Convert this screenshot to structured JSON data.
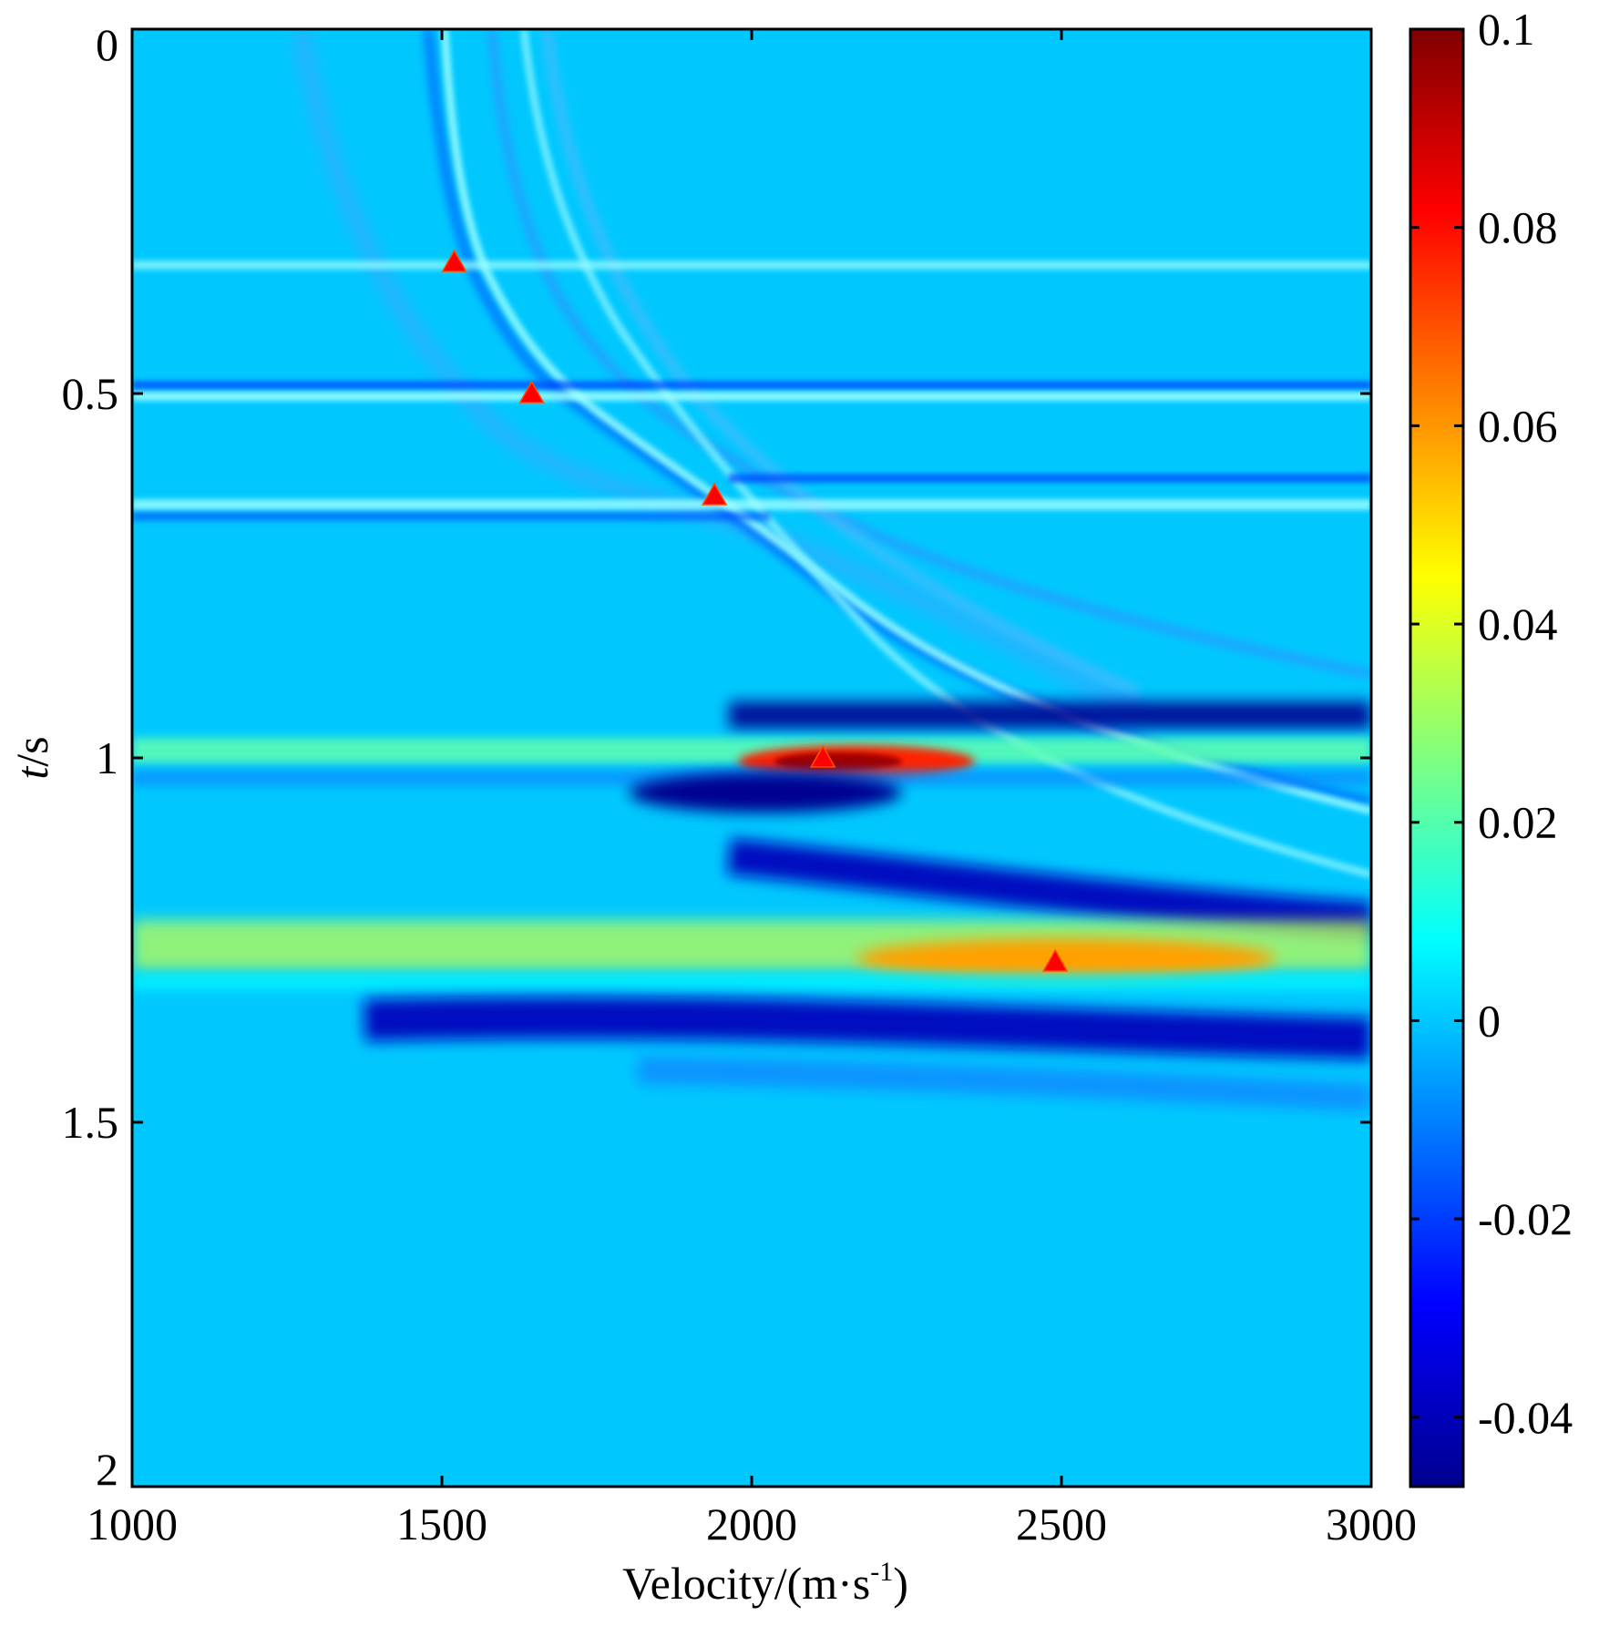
{
  "chart_data": {
    "type": "heatmap",
    "title": "",
    "xlabel": "Velocity/(m·s",
    "xlabel_sup": "-1",
    "xlabel_end": ")",
    "ylabel_italic": "t",
    "ylabel_rest": "/s",
    "xlim": [
      1000,
      3000
    ],
    "ylim": [
      0,
      2
    ],
    "y_axis_inverted": true,
    "x_ticks": [
      1000,
      1500,
      2000,
      2500,
      3000
    ],
    "x_tick_labels": [
      "1000",
      "1500",
      "2000",
      "2500",
      "3000"
    ],
    "y_ticks": [
      0,
      0.5,
      1,
      1.5,
      2
    ],
    "y_tick_labels": [
      "0",
      "0.5",
      "1",
      "1.5",
      "2"
    ],
    "colormap": "jet",
    "background_value": 0,
    "colorbar": {
      "min": -0.047,
      "max": 0.1,
      "ticks": [
        0.1,
        0.08,
        0.06,
        0.04,
        0.02,
        0,
        -0.02,
        -0.04
      ],
      "tick_labels": [
        "0.1",
        "0.08",
        "0.06",
        "0.04",
        "0.02",
        "0",
        "-0.02",
        "-0.04"
      ]
    },
    "picked_points": [
      {
        "velocity": 1520,
        "t": 0.32
      },
      {
        "velocity": 1645,
        "t": 0.5
      },
      {
        "velocity": 1940,
        "t": 0.64
      },
      {
        "velocity": 2115,
        "t": 1.0
      },
      {
        "velocity": 2490,
        "t": 1.28
      }
    ],
    "marker_color": "#ff0000",
    "grid": false,
    "legend": "none"
  }
}
